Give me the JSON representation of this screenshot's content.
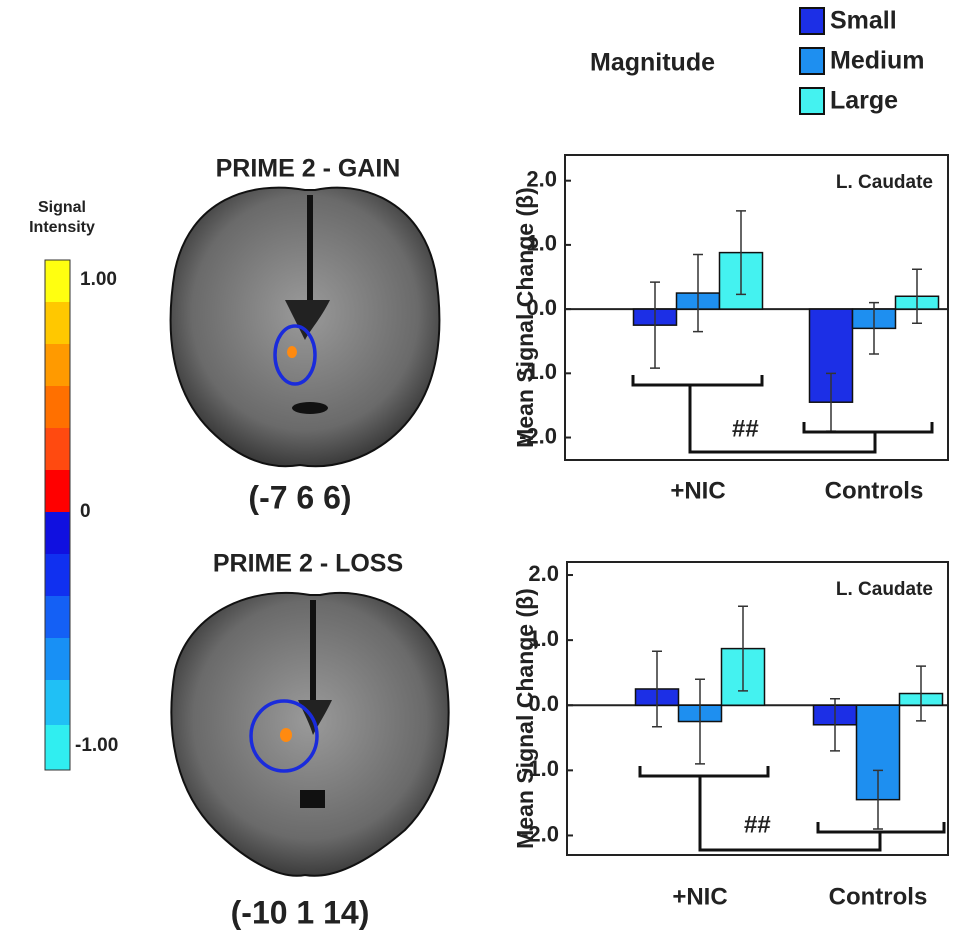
{
  "chart_data": [
    {
      "type": "bar",
      "legend_title": "Magnitude",
      "annotation": "L. Caudate",
      "significance": "##",
      "y_label": "Mean Signal Change (β)",
      "categories": [
        "+NIC",
        "Controls"
      ],
      "series": [
        {
          "name": "Small",
          "color": "#1c2fe6",
          "values": [
            -0.25,
            -1.45
          ],
          "errors": [
            0.67,
            0.45
          ]
        },
        {
          "name": "Medium",
          "color": "#1e8ff0",
          "values": [
            0.25,
            -0.3
          ],
          "errors": [
            0.6,
            0.4
          ]
        },
        {
          "name": "Large",
          "color": "#44f2f0",
          "values": [
            0.88,
            0.2
          ],
          "errors": [
            0.65,
            0.42
          ]
        }
      ],
      "ylim": [
        -2.35,
        2.4
      ],
      "yticks": [
        {
          "value": 2,
          "label": "2.0"
        },
        {
          "value": 1,
          "label": "1.0"
        },
        {
          "value": 0,
          "label": "0.0"
        },
        {
          "value": -1,
          "label": "-1.0"
        },
        {
          "value": -2,
          "label": "-2.0"
        }
      ]
    },
    {
      "type": "bar",
      "annotation": "L. Caudate",
      "significance": "##",
      "y_label": "Mean Signal Change (β)",
      "categories": [
        "+NIC",
        "Controls"
      ],
      "series": [
        {
          "name": "Small",
          "color": "#1c2fe6",
          "values": [
            0.25,
            -0.3
          ],
          "errors": [
            0.58,
            0.4
          ]
        },
        {
          "name": "Medium",
          "color": "#1e8ff0",
          "values": [
            -0.25,
            -1.45
          ],
          "errors": [
            0.65,
            0.45
          ]
        },
        {
          "name": "Large",
          "color": "#44f2f0",
          "values": [
            0.87,
            0.18
          ],
          "errors": [
            0.65,
            0.42
          ]
        }
      ],
      "ylim": [
        -2.3,
        2.2
      ],
      "yticks": [
        {
          "value": 2,
          "label": "2.0"
        },
        {
          "value": 1,
          "label": "1.0"
        },
        {
          "value": 0,
          "label": "0.0"
        },
        {
          "value": -1,
          "label": "-1.0"
        },
        {
          "value": -2,
          "label": "-2.0"
        }
      ]
    }
  ],
  "brains": [
    {
      "title": "PRIME 2 - GAIN",
      "coords": "(-7 6 6)"
    },
    {
      "title": "PRIME 2 - LOSS",
      "coords": "(-10 1 14)"
    }
  ],
  "colorbar": {
    "title": [
      "Signal",
      "Intensity"
    ],
    "labels": [
      "1.00",
      "0",
      "-1.00"
    ]
  }
}
